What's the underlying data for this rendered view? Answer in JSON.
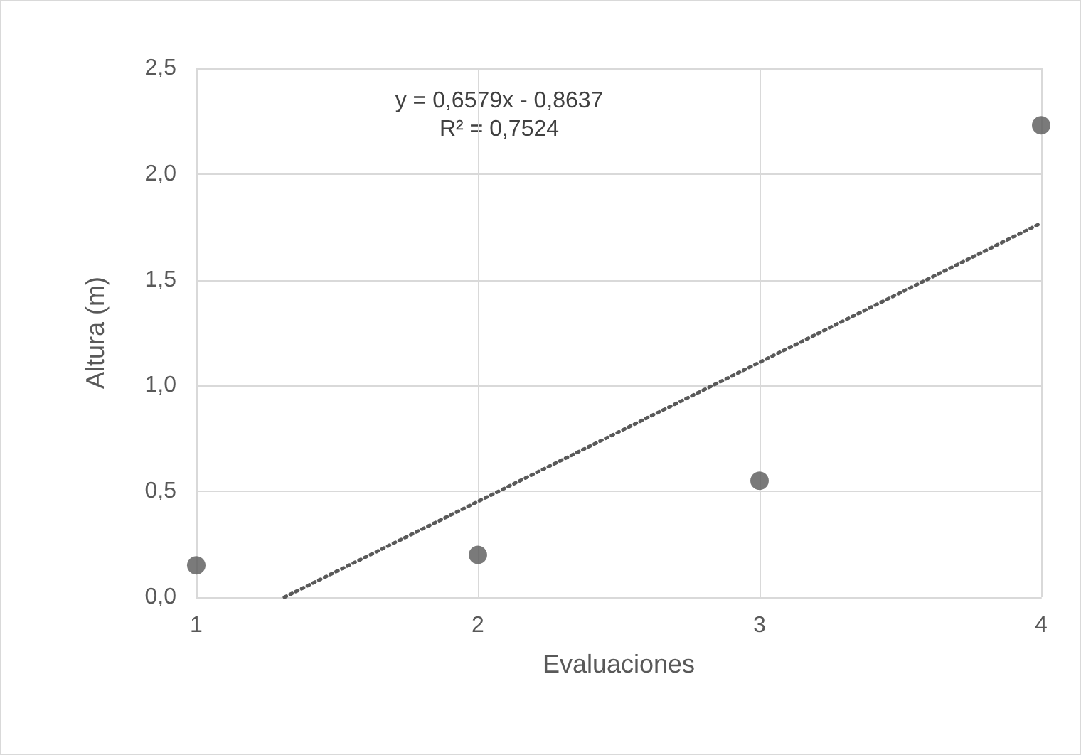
{
  "chart_data": {
    "type": "scatter",
    "xlabel": "Evaluaciones",
    "ylabel": "Altura (m)",
    "annotations": [
      "y = 0,6579x - 0,8637",
      "R² = 0,7524"
    ],
    "xlim": [
      1,
      4
    ],
    "xticks": [
      1,
      2,
      3,
      4
    ],
    "ylim": [
      0,
      2.5
    ],
    "yticks": [
      {
        "value": 0,
        "label": "0,0"
      },
      {
        "value": 0.5,
        "label": "0,5"
      },
      {
        "value": 1,
        "label": "1,0"
      },
      {
        "value": 1.5,
        "label": "1,5"
      },
      {
        "value": 2,
        "label": "2,0"
      },
      {
        "value": 2.5,
        "label": "2,5"
      }
    ],
    "grid": true,
    "series": [
      {
        "color": "#595959",
        "marker": "circle",
        "x": [
          1,
          2,
          3,
          4
        ],
        "values": [
          0.15,
          0.2,
          0.55,
          2.23
        ]
      },
      {
        "type": "line",
        "color": "#595959",
        "marker": "none",
        "line_style": "dotted",
        "x": [
          1.313,
          4
        ],
        "values": [
          0,
          1.768
        ]
      }
    ]
  }
}
